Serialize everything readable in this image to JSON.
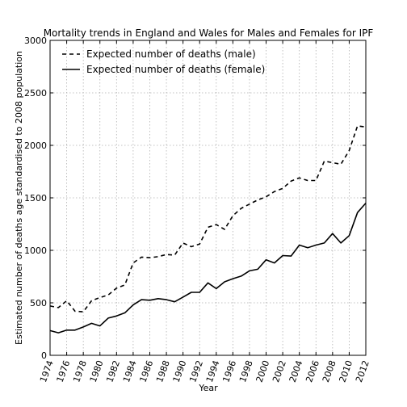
{
  "chart_data": {
    "type": "line",
    "title": "Mortality trends in England and Wales for Males and Females for IPF",
    "xlabel": "Year",
    "ylabel": "Estimated number of deaths age standardised to 2008 population",
    "xlim": [
      1974,
      2012
    ],
    "ylim": [
      0,
      3000
    ],
    "x_ticks": [
      "1974",
      "1976",
      "1978",
      "1980",
      "1982",
      "1984",
      "1986",
      "1988",
      "1990",
      "1992",
      "1994",
      "1996",
      "1998",
      "2000",
      "2002",
      "2004",
      "2006",
      "2008",
      "2010",
      "2012"
    ],
    "y_ticks": [
      "0",
      "500",
      "1000",
      "1500",
      "2000",
      "2500",
      "3000"
    ],
    "grid": true,
    "legend_position": "top-left",
    "x": [
      1974,
      1975,
      1976,
      1977,
      1978,
      1979,
      1980,
      1981,
      1982,
      1983,
      1984,
      1985,
      1986,
      1987,
      1988,
      1989,
      1990,
      1991,
      1992,
      1993,
      1994,
      1995,
      1996,
      1997,
      1998,
      1999,
      2000,
      2001,
      2002,
      2003,
      2004,
      2005,
      2006,
      2007,
      2008,
      2009,
      2010,
      2011,
      2012
    ],
    "series": [
      {
        "name": "Expected number of deaths (male)",
        "style": "dashed",
        "color": "#000000",
        "values": [
          470,
          455,
          520,
          420,
          415,
          520,
          550,
          575,
          640,
          670,
          880,
          935,
          930,
          940,
          960,
          955,
          1070,
          1035,
          1060,
          1220,
          1245,
          1200,
          1330,
          1400,
          1440,
          1480,
          1510,
          1560,
          1590,
          1660,
          1690,
          1665,
          1665,
          1850,
          1835,
          1820,
          1950,
          2185,
          2175
        ]
      },
      {
        "name": "Expected number of deaths (female)",
        "style": "solid",
        "color": "#000000",
        "values": [
          235,
          215,
          240,
          240,
          270,
          305,
          280,
          355,
          375,
          405,
          480,
          530,
          525,
          540,
          530,
          510,
          555,
          600,
          600,
          690,
          635,
          700,
          730,
          755,
          805,
          820,
          910,
          880,
          950,
          945,
          1050,
          1025,
          1050,
          1070,
          1160,
          1070,
          1140,
          1360,
          1450
        ]
      }
    ]
  }
}
